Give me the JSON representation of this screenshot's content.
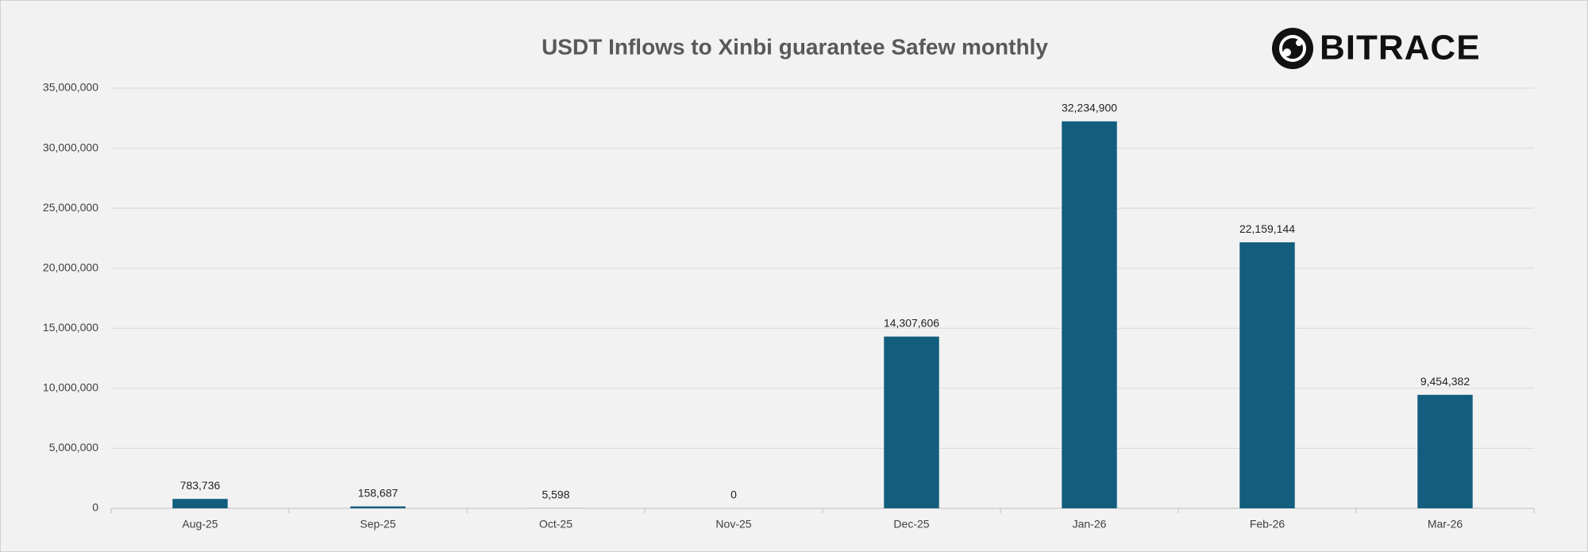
{
  "chart_data": {
    "type": "bar",
    "title": "USDT Inflows to Xinbi guarantee Safew monthly",
    "categories": [
      "Aug-25",
      "Sep-25",
      "Oct-25",
      "Nov-25",
      "Dec-25",
      "Jan-26",
      "Feb-26",
      "Mar-26"
    ],
    "values": [
      783736,
      158687,
      5598,
      0,
      14307606,
      32234900,
      22159144,
      9454382
    ],
    "value_labels": [
      "783,736",
      "158,687",
      "5,598",
      "0",
      "14,307,606",
      "32,234,900",
      "22,159,144",
      "9,454,382"
    ],
    "color": "#135e7f",
    "ylim": [
      0,
      35000000
    ],
    "yticks": [
      0,
      {
        "value": 5000000,
        "label": "5,000,000"
      },
      {
        "value": 10000000,
        "label": "10,000,000"
      },
      {
        "value": 15000000,
        "label": "15,000,000"
      },
      {
        "value": 20000000,
        "label": "20,000,000"
      },
      {
        "value": 25000000,
        "label": "25,000,000"
      },
      {
        "value": 30000000,
        "label": "30,000,000"
      },
      {
        "value": 35000000,
        "label": "35,000,000"
      }
    ],
    "grid": true
  },
  "logo_text": "BITRACE"
}
